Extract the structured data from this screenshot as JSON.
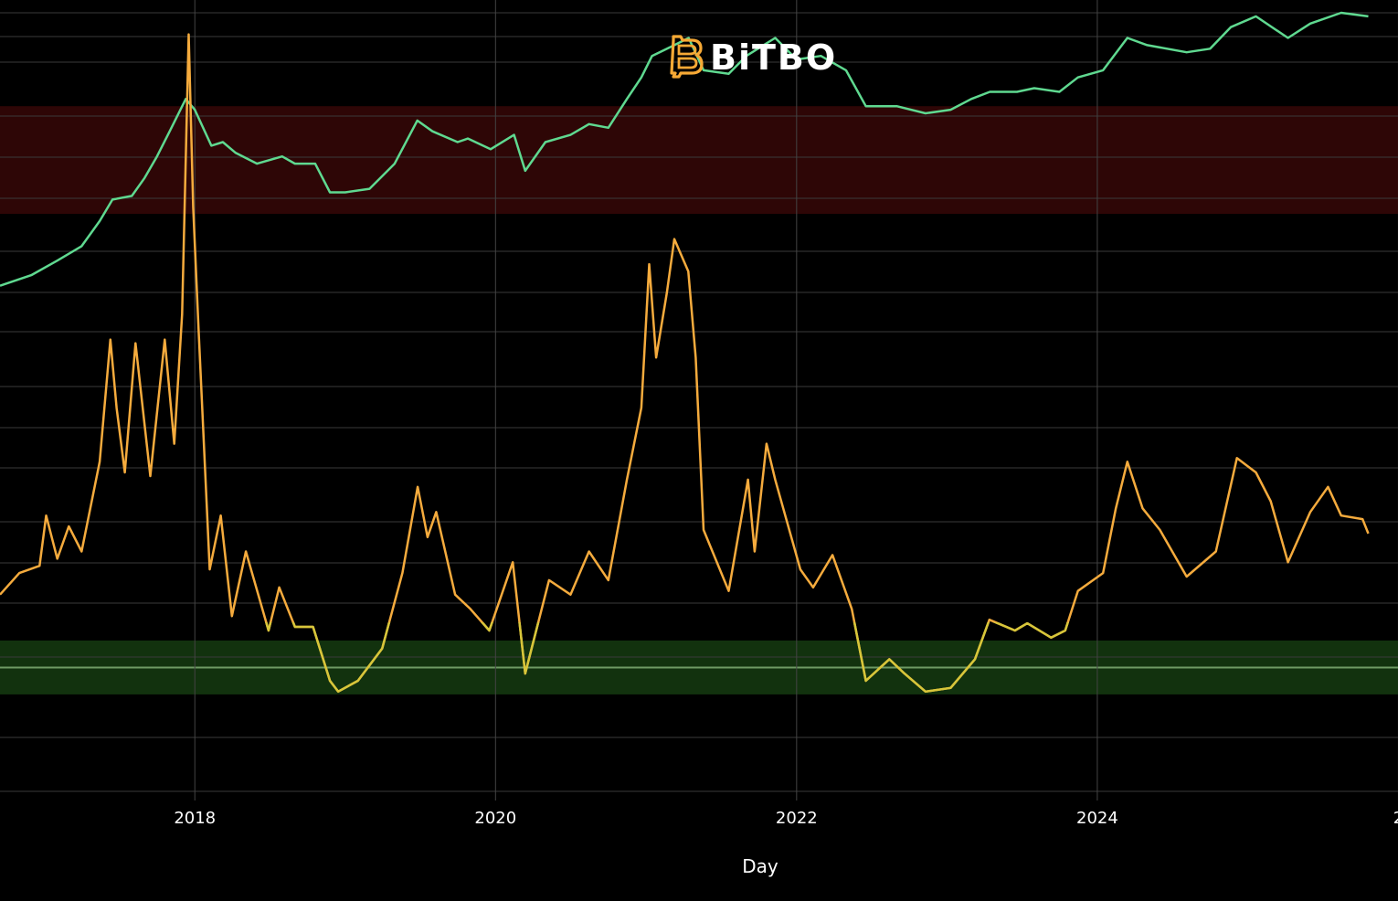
{
  "logo": {
    "text": "BiTBO",
    "icon": "bitbo-b-icon",
    "icon_color": "#f7a935"
  },
  "chart_data": {
    "type": "line",
    "xlabel": "Day",
    "x_range": [
      "2016-09-15",
      "2025-12-31"
    ],
    "x_tick_labels": [
      "2018",
      "2020",
      "2022",
      "2024",
      "2"
    ],
    "x_tick_dates": [
      "2018-01-01",
      "2020-01-01",
      "2022-01-01",
      "2024-01-01",
      "2026-01-01"
    ],
    "grid": true,
    "legend": "none",
    "background": "#000000",
    "bands": [
      {
        "zone": "overvalued",
        "color": "#2e0606",
        "y_top": 87,
        "y_bottom": 72
      },
      {
        "zone": "undervalued",
        "color": "#12320e",
        "y_top": 12.6,
        "y_bottom": 5.1
      }
    ],
    "y_range": [
      0,
      100
    ],
    "series": [
      {
        "role": "price",
        "color": "#5fd990",
        "points": [
          [
            "2016-09-15",
            62.0
          ],
          [
            "2016-12-01",
            63.5
          ],
          [
            "2017-02-01",
            65.5
          ],
          [
            "2017-04-01",
            67.5
          ],
          [
            "2017-05-15",
            71.0
          ],
          [
            "2017-06-15",
            74.0
          ],
          [
            "2017-08-01",
            74.5
          ],
          [
            "2017-09-01",
            77.0
          ],
          [
            "2017-10-01",
            80.0
          ],
          [
            "2017-11-01",
            83.5
          ],
          [
            "2017-12-10",
            88.0
          ],
          [
            "2018-01-01",
            86.5
          ],
          [
            "2018-02-10",
            81.5
          ],
          [
            "2018-03-10",
            82.0
          ],
          [
            "2018-04-10",
            80.5
          ],
          [
            "2018-06-01",
            79.0
          ],
          [
            "2018-08-01",
            80.0
          ],
          [
            "2018-09-01",
            79.0
          ],
          [
            "2018-10-20",
            79.0
          ],
          [
            "2018-11-25",
            75.0
          ],
          [
            "2019-01-01",
            75.0
          ],
          [
            "2019-03-01",
            75.5
          ],
          [
            "2019-05-01",
            79.0
          ],
          [
            "2019-06-25",
            85.0
          ],
          [
            "2019-08-01",
            83.5
          ],
          [
            "2019-10-01",
            82.0
          ],
          [
            "2019-10-26",
            82.5
          ],
          [
            "2019-12-20",
            81.0
          ],
          [
            "2020-02-15",
            83.0
          ],
          [
            "2020-03-13",
            78.0
          ],
          [
            "2020-05-01",
            82.0
          ],
          [
            "2020-07-01",
            83.0
          ],
          [
            "2020-08-15",
            84.5
          ],
          [
            "2020-10-01",
            84.0
          ],
          [
            "2020-11-15",
            88.0
          ],
          [
            "2020-12-20",
            91.0
          ],
          [
            "2021-01-15",
            94.0
          ],
          [
            "2021-03-10",
            95.5
          ],
          [
            "2021-04-14",
            96.5
          ],
          [
            "2021-05-20",
            92.0
          ],
          [
            "2021-07-20",
            91.5
          ],
          [
            "2021-09-01",
            94.0
          ],
          [
            "2021-11-10",
            96.5
          ],
          [
            "2022-01-01",
            93.5
          ],
          [
            "2022-03-01",
            94.0
          ],
          [
            "2022-05-01",
            92.0
          ],
          [
            "2022-06-18",
            87.0
          ],
          [
            "2022-09-01",
            87.0
          ],
          [
            "2022-11-10",
            86.0
          ],
          [
            "2023-01-10",
            86.5
          ],
          [
            "2023-03-01",
            88.0
          ],
          [
            "2023-04-15",
            89.0
          ],
          [
            "2023-06-20",
            89.0
          ],
          [
            "2023-08-01",
            89.5
          ],
          [
            "2023-10-01",
            89.0
          ],
          [
            "2023-11-15",
            91.0
          ],
          [
            "2024-01-15",
            92.0
          ],
          [
            "2024-03-14",
            96.5
          ],
          [
            "2024-05-01",
            95.5
          ],
          [
            "2024-08-05",
            94.5
          ],
          [
            "2024-10-01",
            95.0
          ],
          [
            "2024-11-20",
            98.0
          ],
          [
            "2025-01-20",
            99.5
          ],
          [
            "2025-04-08",
            96.5
          ],
          [
            "2025-06-01",
            98.5
          ],
          [
            "2025-08-15",
            100.0
          ],
          [
            "2025-10-20",
            99.5
          ]
        ]
      },
      {
        "role": "oscillator",
        "color": "#f5ab3d",
        "low_color": "#d7c63a",
        "points": [
          [
            "2016-09-15",
            19.0
          ],
          [
            "2016-11-01",
            22.0
          ],
          [
            "2016-12-20",
            23.0
          ],
          [
            "2017-01-05",
            30.0
          ],
          [
            "2017-02-01",
            24.0
          ],
          [
            "2017-03-01",
            28.5
          ],
          [
            "2017-04-01",
            25.0
          ],
          [
            "2017-05-15",
            37.5
          ],
          [
            "2017-06-10",
            54.5
          ],
          [
            "2017-06-25",
            45.0
          ],
          [
            "2017-07-15",
            36.0
          ],
          [
            "2017-08-10",
            54.0
          ],
          [
            "2017-09-15",
            35.5
          ],
          [
            "2017-10-20",
            54.5
          ],
          [
            "2017-11-12",
            40.0
          ],
          [
            "2017-12-01",
            58.0
          ],
          [
            "2017-12-17",
            97.0
          ],
          [
            "2017-12-28",
            73.0
          ],
          [
            "2018-01-10",
            56.0
          ],
          [
            "2018-02-06",
            22.5
          ],
          [
            "2018-03-05",
            30.0
          ],
          [
            "2018-04-01",
            16.0
          ],
          [
            "2018-05-05",
            25.0
          ],
          [
            "2018-06-29",
            14.0
          ],
          [
            "2018-07-25",
            20.0
          ],
          [
            "2018-09-01",
            14.5
          ],
          [
            "2018-10-15",
            14.5
          ],
          [
            "2018-11-25",
            7.0
          ],
          [
            "2018-12-15",
            5.5
          ],
          [
            "2019-02-01",
            7.0
          ],
          [
            "2019-04-01",
            11.5
          ],
          [
            "2019-05-20",
            22.0
          ],
          [
            "2019-06-26",
            34.0
          ],
          [
            "2019-07-20",
            27.0
          ],
          [
            "2019-08-10",
            30.5
          ],
          [
            "2019-09-25",
            19.0
          ],
          [
            "2019-11-01",
            17.0
          ],
          [
            "2019-12-17",
            14.0
          ],
          [
            "2020-02-12",
            23.5
          ],
          [
            "2020-03-13",
            8.0
          ],
          [
            "2020-05-10",
            21.0
          ],
          [
            "2020-07-01",
            19.0
          ],
          [
            "2020-08-15",
            25.0
          ],
          [
            "2020-10-01",
            21.0
          ],
          [
            "2020-11-15",
            35.0
          ],
          [
            "2020-12-20",
            45.0
          ],
          [
            "2021-01-08",
            65.0
          ],
          [
            "2021-01-25",
            52.0
          ],
          [
            "2021-02-20",
            61.0
          ],
          [
            "2021-03-10",
            68.5
          ],
          [
            "2021-04-13",
            64.0
          ],
          [
            "2021-05-01",
            52.0
          ],
          [
            "2021-05-20",
            28.0
          ],
          [
            "2021-07-20",
            19.5
          ],
          [
            "2021-09-05",
            35.0
          ],
          [
            "2021-09-21",
            25.0
          ],
          [
            "2021-10-20",
            40.0
          ],
          [
            "2021-11-10",
            35.0
          ],
          [
            "2022-01-10",
            22.5
          ],
          [
            "2022-02-10",
            20.0
          ],
          [
            "2022-03-29",
            24.5
          ],
          [
            "2022-05-15",
            17.0
          ],
          [
            "2022-06-18",
            7.0
          ],
          [
            "2022-08-14",
            10.0
          ],
          [
            "2022-09-20",
            8.0
          ],
          [
            "2022-11-10",
            5.5
          ],
          [
            "2023-01-10",
            6.0
          ],
          [
            "2023-03-10",
            10.0
          ],
          [
            "2023-04-14",
            15.5
          ],
          [
            "2023-06-15",
            14.0
          ],
          [
            "2023-07-15",
            15.0
          ],
          [
            "2023-09-11",
            13.0
          ],
          [
            "2023-10-15",
            14.0
          ],
          [
            "2023-11-15",
            19.5
          ],
          [
            "2024-01-15",
            22.0
          ],
          [
            "2024-02-15",
            31.0
          ],
          [
            "2024-03-14",
            37.5
          ],
          [
            "2024-04-20",
            31.0
          ],
          [
            "2024-06-01",
            28.0
          ],
          [
            "2024-08-05",
            21.5
          ],
          [
            "2024-10-15",
            25.0
          ],
          [
            "2024-12-05",
            38.0
          ],
          [
            "2025-01-20",
            36.0
          ],
          [
            "2025-02-25",
            32.0
          ],
          [
            "2025-04-08",
            23.5
          ],
          [
            "2025-06-01",
            30.5
          ],
          [
            "2025-07-14",
            34.0
          ],
          [
            "2025-08-15",
            30.0
          ],
          [
            "2025-10-06",
            29.5
          ],
          [
            "2025-10-20",
            27.5
          ]
        ]
      }
    ]
  }
}
